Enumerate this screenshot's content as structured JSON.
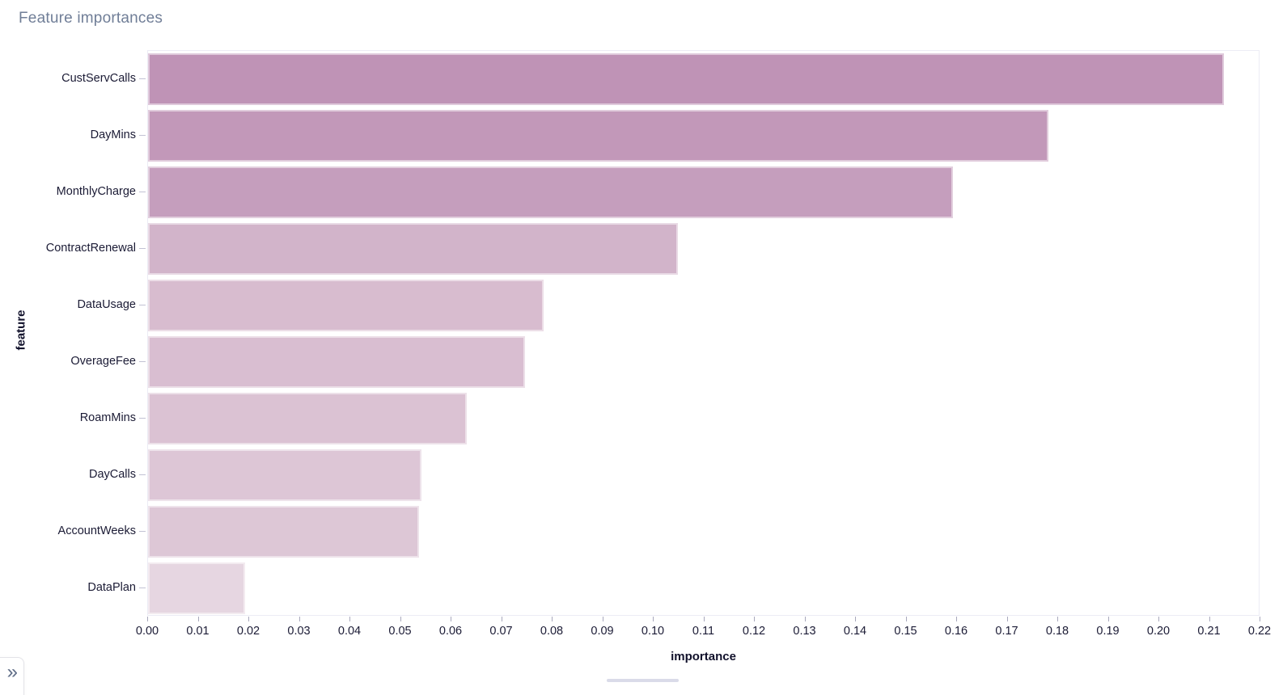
{
  "chart_data": {
    "type": "bar",
    "orientation": "horizontal",
    "title": "Feature importances",
    "xlabel": "importance",
    "ylabel": "feature",
    "xlim": [
      0,
      0.22
    ],
    "x_tick_step": 0.01,
    "x_ticks": [
      "0.00",
      "0.01",
      "0.02",
      "0.03",
      "0.04",
      "0.05",
      "0.06",
      "0.07",
      "0.08",
      "0.09",
      "0.10",
      "0.11",
      "0.12",
      "0.13",
      "0.14",
      "0.15",
      "0.16",
      "0.17",
      "0.18",
      "0.19",
      "0.20",
      "0.21",
      "0.22"
    ],
    "categories": [
      "CustServCalls",
      "DayMins",
      "MonthlyCharge",
      "ContractRenewal",
      "DataUsage",
      "OverageFee",
      "RoamMins",
      "DayCalls",
      "AccountWeeks",
      "DataPlan"
    ],
    "values": [
      0.2131,
      0.1783,
      0.1595,
      0.105,
      0.0783,
      0.0746,
      0.0632,
      0.0541,
      0.0536,
      0.0192
    ],
    "bar_colors": [
      "#bf93b6",
      "#c298b9",
      "#c59ebd",
      "#d2b4ca",
      "#d8bccf",
      "#d9bed1",
      "#dbc2d3",
      "#ddc6d6",
      "#ddc7d6",
      "#e6d6e1"
    ],
    "grid": false,
    "legend": null
  },
  "colors": {
    "title_text": "#707e97",
    "axis_tick_text": "#1b1b35",
    "axis_label_text": "#11112b",
    "plot_border": "#ececf5",
    "scroll_thumb": "#dadbe9",
    "chevron_icon": "#5f6d87"
  },
  "expander": {
    "icon": "»"
  }
}
